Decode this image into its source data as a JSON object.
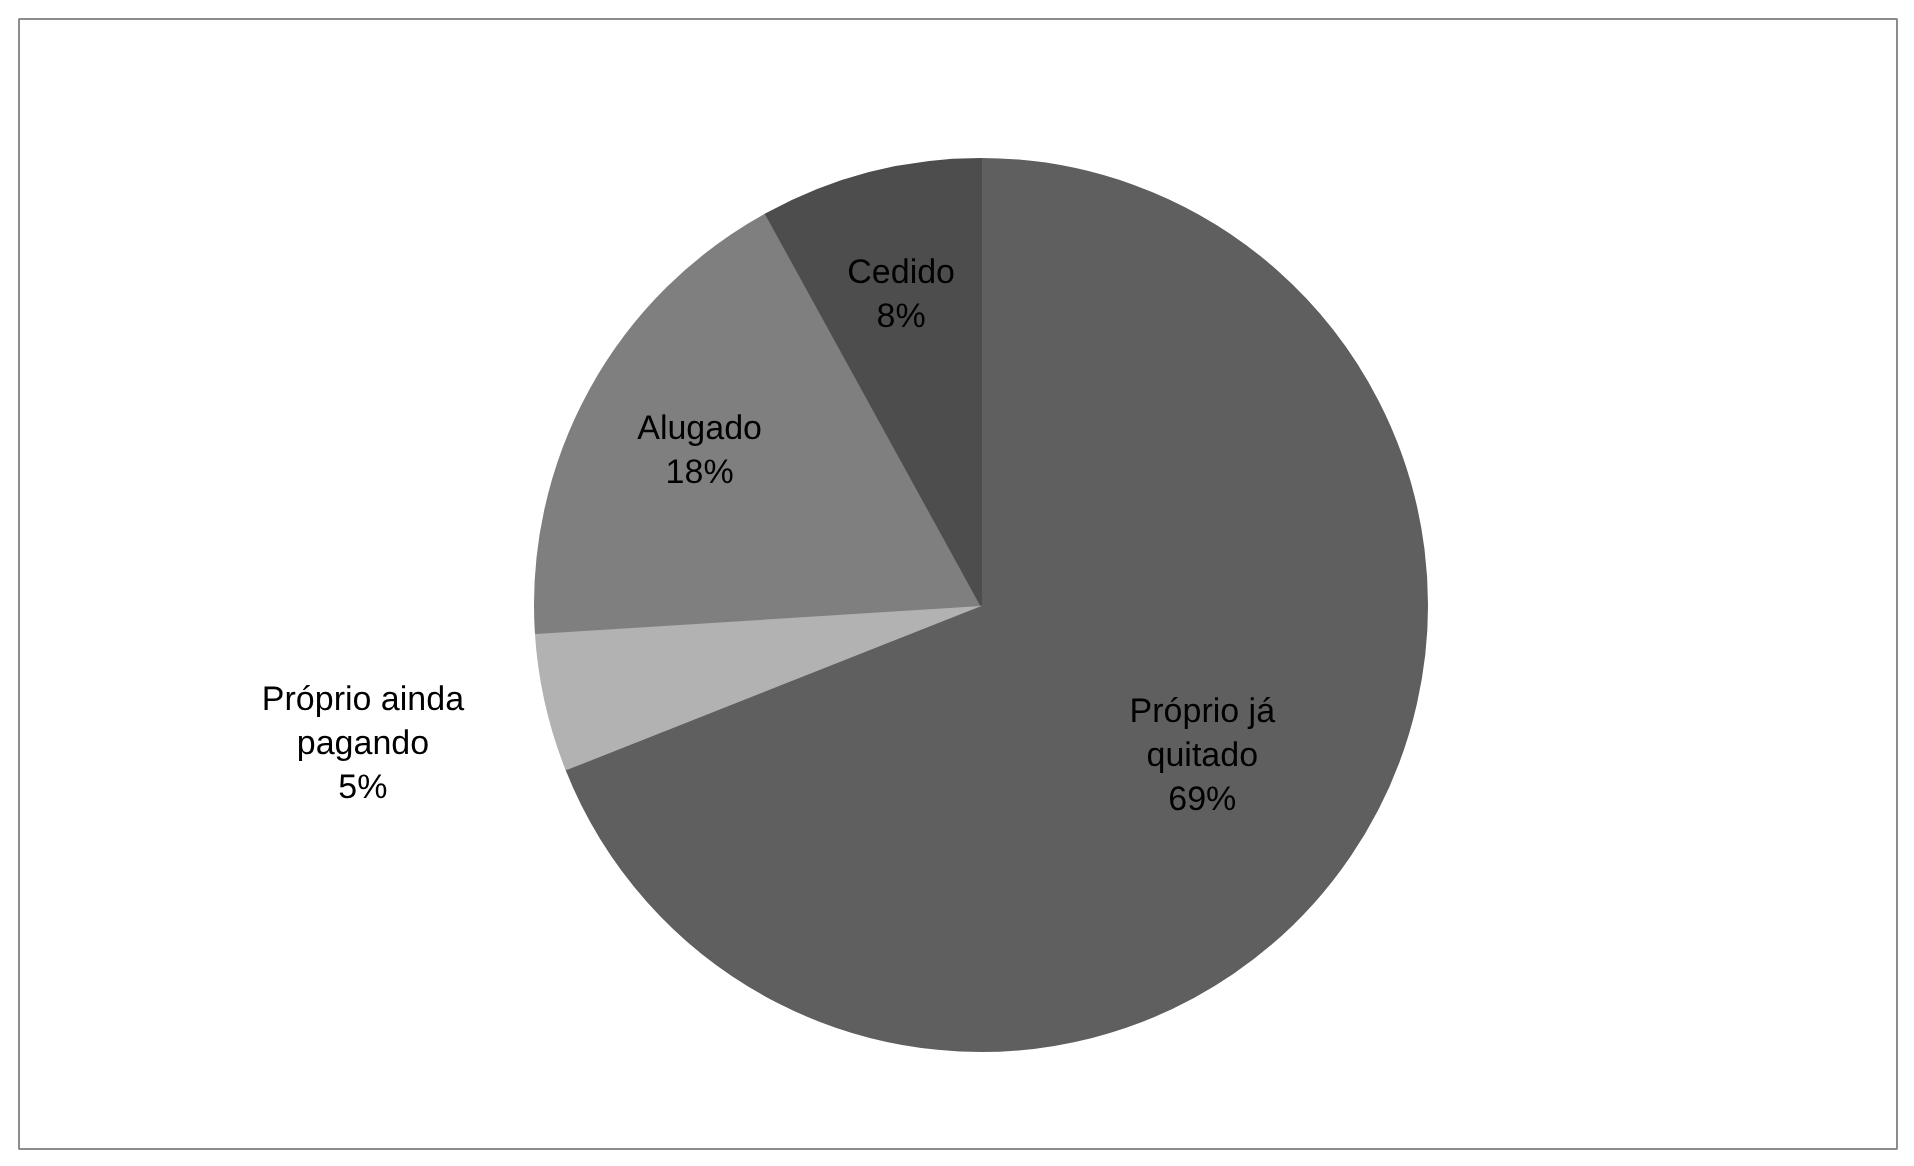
{
  "chart_data": {
    "type": "pie",
    "categories": [
      "Próprio já quitado",
      "Próprio ainda pagando",
      "Alugado",
      "Cedido"
    ],
    "values": [
      69,
      5,
      18,
      8
    ],
    "value_labels": [
      "69%",
      "5%",
      "18%",
      "8%"
    ],
    "colors": [
      "#5f5f5f",
      "#b2b2b2",
      "#7f7f7f",
      "#4d4d4d"
    ],
    "legend": false
  }
}
